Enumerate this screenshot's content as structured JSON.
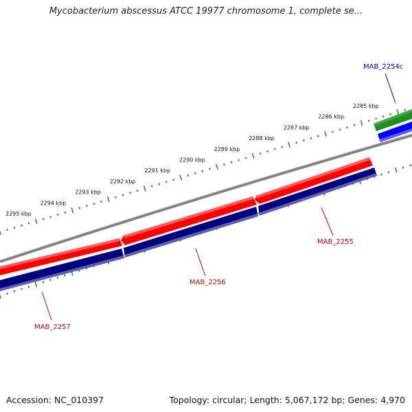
{
  "title": "Mycobacterium abscessus ATCC 19977 chromosome 1, complete se...",
  "footer": {
    "accession": "Accession: NC_010397",
    "summary": "Topology: circular; Length: 5,067,172 bp; Genes: 4,970"
  },
  "colors": {
    "backbone": "#808080",
    "cds_forward": "#ff0000",
    "cds_reverse": "#000080",
    "gene_forward": "#228b22",
    "gene_reverse": "#0000ff",
    "ticks": "#2e8b2e",
    "label_red": "#cc0000",
    "label_blue": "#0000cc"
  },
  "ruler": {
    "unit": "kbp",
    "ticks": [
      {
        "kbp": 2285,
        "label": "2285 kbp"
      },
      {
        "kbp": 2286,
        "label": "2286 kbp"
      },
      {
        "kbp": 2287,
        "label": "2287 kbp"
      },
      {
        "kbp": 2288,
        "label": "2288 kbp"
      },
      {
        "kbp": 2289,
        "label": "2289 kbp"
      },
      {
        "kbp": 2290,
        "label": "2290 kbp"
      },
      {
        "kbp": 2291,
        "label": "2291 kbp"
      },
      {
        "kbp": 2292,
        "label": "2292 kbp"
      },
      {
        "kbp": 2293,
        "label": "2293 kbp"
      },
      {
        "kbp": 2294,
        "label": "2294 kbp"
      },
      {
        "kbp": 2295,
        "label": "2295 kbp"
      }
    ]
  },
  "features": [
    {
      "id": "MAB_2254c",
      "label": "MAB_2254c",
      "color_key": "label_blue"
    },
    {
      "id": "MAB_2255",
      "label": "MAB_2255",
      "color_key": "label_red"
    },
    {
      "id": "MAB_2256",
      "label": "MAB_2256",
      "color_key": "label_red"
    },
    {
      "id": "MAB_2257",
      "label": "MAB_2257",
      "color_key": "label_red"
    }
  ]
}
